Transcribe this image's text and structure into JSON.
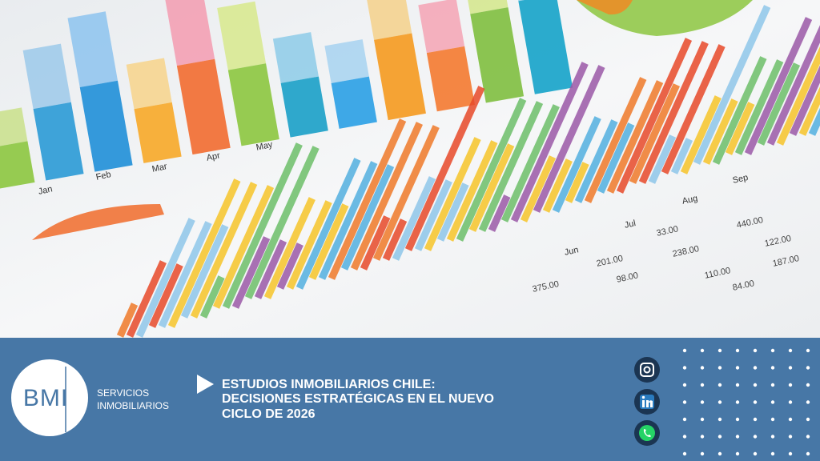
{
  "photo": {
    "month_labels": [
      "Jan",
      "Feb",
      "Mar",
      "Apr",
      "May",
      "Jun",
      "Jul",
      "Aug",
      "Sep"
    ],
    "table_values": [
      "201.00",
      "33.00",
      "440.00",
      "238.00",
      "122.00",
      "110.00",
      "187.00",
      "98.00",
      "375.00",
      "84.00"
    ]
  },
  "brand": {
    "logo": "BMI",
    "tagline": [
      "SERVICIOS",
      "INMOBILIARIOS"
    ]
  },
  "headline": {
    "lines": [
      "ESTUDIOS INMOBILIARIOS CHILE:",
      "DECISIONES ESTRATÉGICAS EN EL NUEVO",
      "CICLO DE 2026"
    ]
  }
}
